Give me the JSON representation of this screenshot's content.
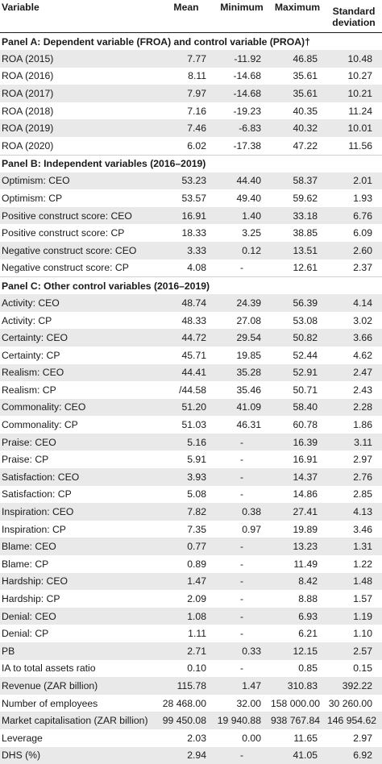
{
  "headers": {
    "variable": "Variable",
    "mean": "Mean",
    "minimum": "Minimum",
    "maximum": "Maximum",
    "sd_line1": "Standard",
    "sd_line2": "deviation"
  },
  "panels": [
    {
      "title": "Panel A: Dependent variable (FROA) and control variable (PROA)†",
      "rows": [
        [
          "ROA (2015)",
          "7.77",
          "-11.92",
          "46.85",
          "10.48"
        ],
        [
          "ROA (2016)",
          "8.11",
          "-14.68",
          "35.61",
          "10.27"
        ],
        [
          "ROA (2017)",
          "7.97",
          "-14.68",
          "35.61",
          "10.21"
        ],
        [
          "ROA (2018)",
          "7.16",
          "-19.23",
          "40.35",
          "11.24"
        ],
        [
          "ROA (2019)",
          "7.46",
          "-6.83",
          "40.32",
          "10.01"
        ],
        [
          "ROA (2020)",
          "6.02",
          "-17.38",
          "47.22",
          "11.56"
        ]
      ]
    },
    {
      "title": "Panel B: Independent variables (2016–2019)",
      "rows": [
        [
          "Optimism: CEO",
          "53.23",
          "44.40",
          "58.37",
          "2.01"
        ],
        [
          "Optimism: CP",
          "53.57",
          "49.40",
          "59.62",
          "1.93"
        ],
        [
          "Positive construct score: CEO",
          "16.91",
          "1.40",
          "33.18",
          "6.76"
        ],
        [
          "Positive construct score: CP",
          "18.33",
          "3.25",
          "38.85",
          "6.09"
        ],
        [
          "Negative construct score: CEO",
          "3.33",
          "0.12",
          "13.51",
          "2.60"
        ],
        [
          "Negative construct score: CP",
          "4.08",
          "-",
          "12.61",
          "2.37"
        ]
      ]
    },
    {
      "title": "Panel C: Other control variables (2016–2019)",
      "rows": [
        [
          "Activity: CEO",
          "48.74",
          "24.39",
          "56.39",
          "4.14"
        ],
        [
          "Activity: CP",
          "48.33",
          "27.08",
          "53.08",
          "3.02"
        ],
        [
          "Certainty: CEO",
          "44.72",
          "29.54",
          "50.82",
          "3.66"
        ],
        [
          "Certainty: CP",
          "45.71",
          "19.85",
          "52.44",
          "4.62"
        ],
        [
          "Realism: CEO",
          "44.41",
          "35.28",
          "52.91",
          "2.47"
        ],
        [
          "Realism: CP",
          "/44.58",
          "35.46",
          "50.71",
          "2.43"
        ],
        [
          "Commonality: CEO",
          "51.20",
          "41.09",
          "58.40",
          "2.28"
        ],
        [
          "Commonality: CP",
          "51.03",
          "46.31",
          "60.78",
          "1.86"
        ],
        [
          "Praise: CEO",
          "5.16",
          "-",
          "16.39",
          "3.11"
        ],
        [
          "Praise: CP",
          "5.91",
          "-",
          "16.91",
          "2.97"
        ],
        [
          "Satisfaction: CEO",
          "3.93",
          "-",
          "14.37",
          "2.76"
        ],
        [
          "Satisfaction: CP",
          "5.08",
          "-",
          "14.86",
          "2.85"
        ],
        [
          "Inspiration: CEO",
          "7.82",
          "0.38",
          "27.41",
          "4.13"
        ],
        [
          "Inspiration: CP",
          "7.35",
          "0.97",
          "19.89",
          "3.46"
        ],
        [
          "Blame: CEO",
          "0.77",
          "-",
          "13.23",
          "1.31"
        ],
        [
          "Blame: CP",
          "0.89",
          "-",
          "11.49",
          "1.22"
        ],
        [
          "Hardship: CEO",
          "1.47",
          "-",
          "8.42",
          "1.48"
        ],
        [
          "Hardship: CP",
          "2.09",
          "-",
          "8.88",
          "1.57"
        ],
        [
          "Denial: CEO",
          "1.08",
          "-",
          "6.93",
          "1.19"
        ],
        [
          "Denial: CP",
          "1.11",
          "-",
          "6.21",
          "1.10"
        ],
        [
          "PB",
          "2.71",
          "0.33",
          "12.15",
          "2.57"
        ],
        [
          "IA to total assets ratio",
          "0.10",
          "-",
          "0.85",
          "0.15"
        ],
        [
          "Revenue (ZAR billion)",
          "115.78",
          "1.47",
          "310.83",
          "392.22"
        ],
        [
          "Number of employees",
          "28 468.00",
          "32.00",
          "158 000.00",
          "30 260.00"
        ],
        [
          "Market capitalisation (ZAR billion)",
          "99 450.08",
          "19 940.88",
          "938 767.84",
          "146 954.62"
        ],
        [
          "Leverage",
          "2.03",
          "0.00",
          "11.65",
          "2.97"
        ],
        [
          "DHS (%)",
          "2.94",
          "-",
          "41.05",
          "6.92"
        ]
      ]
    }
  ]
}
